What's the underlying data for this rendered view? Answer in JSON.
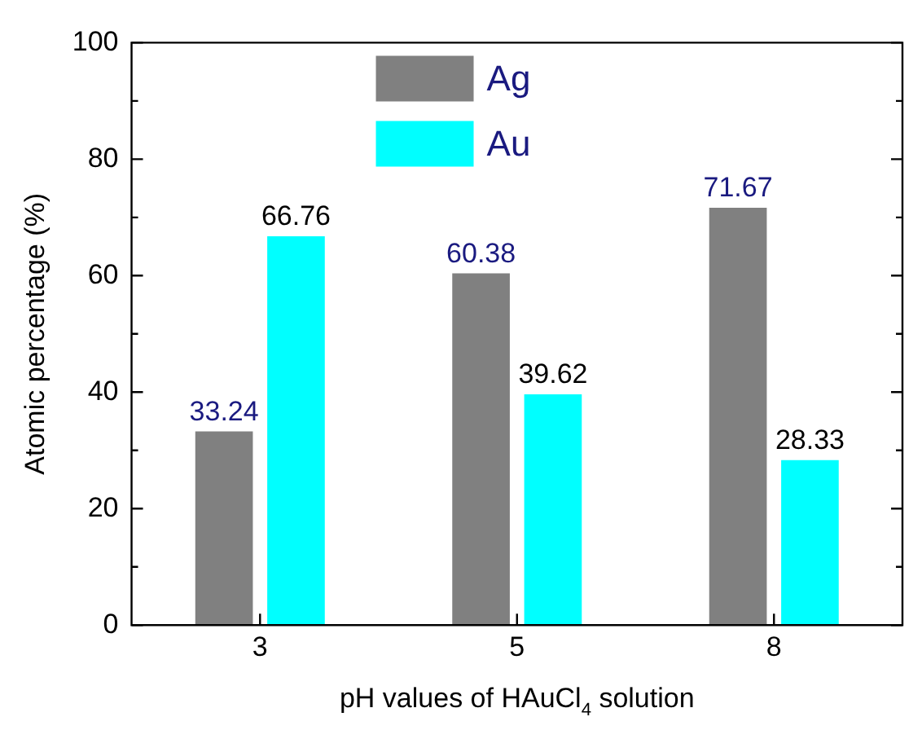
{
  "chart_data": {
    "type": "bar",
    "categories": [
      "3",
      "5",
      "8"
    ],
    "xlabel": "pH values of HAuCl$_{4}$ solution",
    "ylabel": "Atomic percentage (%)",
    "series": [
      {
        "name": "Ag",
        "color": "#808080",
        "values": [
          33.24,
          60.38,
          71.67
        ]
      },
      {
        "name": "Au",
        "color": "#00ffff",
        "values": [
          66.76,
          39.62,
          28.33
        ]
      }
    ],
    "ylim": [
      0,
      100
    ],
    "yticks": [
      0,
      20,
      40,
      60,
      80,
      100
    ],
    "data_labels": true,
    "legend": "top",
    "grid": false
  }
}
